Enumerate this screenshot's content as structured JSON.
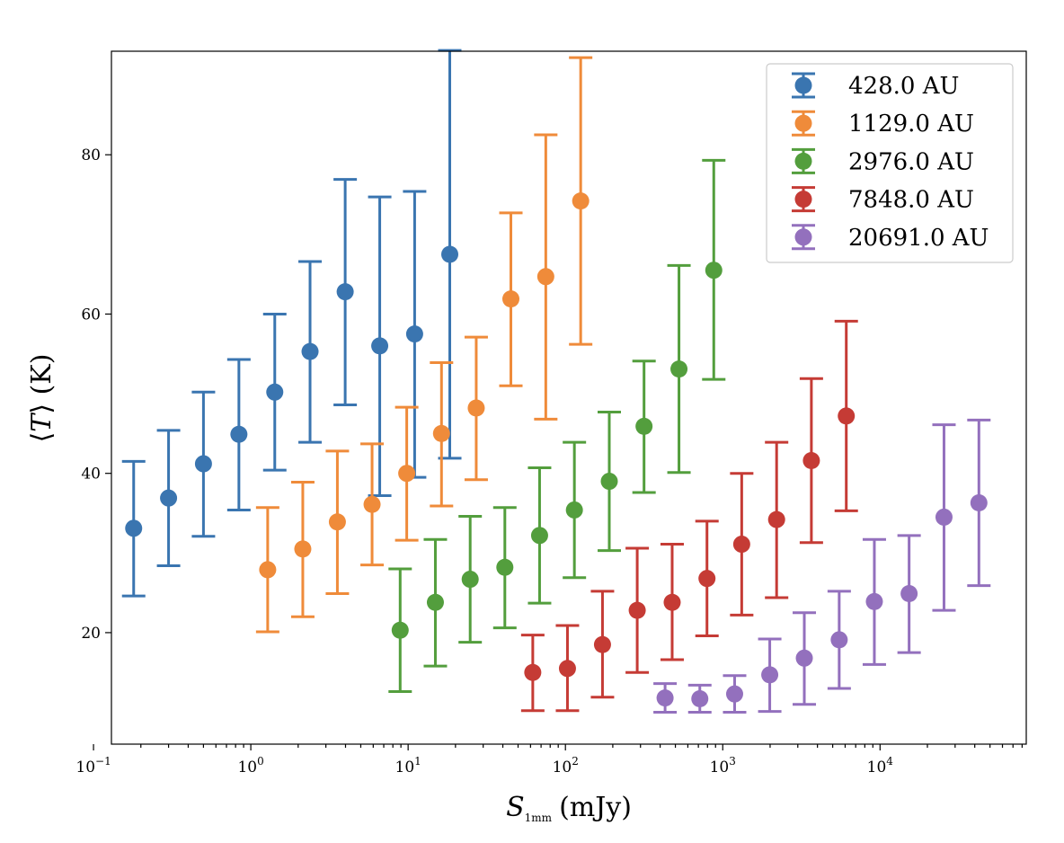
{
  "chart_data": {
    "type": "scatter",
    "title": "",
    "xlabel": {
      "symbol": "S",
      "subscript": "1mm",
      "unit": "(mJy)"
    },
    "ylabel": {
      "symbol": "T",
      "unit": "(K)"
    },
    "xscale": "log",
    "xlim": [
      0.13,
      85000
    ],
    "ylim": [
      6,
      93
    ],
    "xticks": [
      {
        "value": 0.1,
        "base": "10",
        "exp": "−1"
      },
      {
        "value": 1,
        "base": "10",
        "exp": "0"
      },
      {
        "value": 10,
        "base": "10",
        "exp": "1"
      },
      {
        "value": 100,
        "base": "10",
        "exp": "2"
      },
      {
        "value": 1000,
        "base": "10",
        "exp": "3"
      },
      {
        "value": 10000,
        "base": "10",
        "exp": "4"
      }
    ],
    "yticks": [
      {
        "value": 20,
        "label": "20"
      },
      {
        "value": 40,
        "label": "40"
      },
      {
        "value": 60,
        "label": "60"
      },
      {
        "value": 80,
        "label": "80"
      }
    ],
    "legend_position": "top-right",
    "series": [
      {
        "name": "428.0 AU",
        "color": "#3a75b0",
        "points": [
          {
            "x": 0.18,
            "y": 33.1,
            "lo": 24.6,
            "hi": 41.5
          },
          {
            "x": 0.3,
            "y": 36.9,
            "lo": 28.4,
            "hi": 45.4
          },
          {
            "x": 0.5,
            "y": 41.2,
            "lo": 32.1,
            "hi": 50.2
          },
          {
            "x": 0.84,
            "y": 44.9,
            "lo": 35.4,
            "hi": 54.3
          },
          {
            "x": 1.42,
            "y": 50.2,
            "lo": 40.4,
            "hi": 60.0
          },
          {
            "x": 2.38,
            "y": 55.3,
            "lo": 43.9,
            "hi": 66.6
          },
          {
            "x": 3.98,
            "y": 62.8,
            "lo": 48.6,
            "hi": 76.9
          },
          {
            "x": 6.6,
            "y": 56.0,
            "lo": 37.2,
            "hi": 74.7
          },
          {
            "x": 11.0,
            "y": 57.5,
            "lo": 39.5,
            "hi": 75.4
          },
          {
            "x": 18.4,
            "y": 67.5,
            "lo": 41.9,
            "hi": 93.1
          }
        ]
      },
      {
        "name": "1129.0 AU",
        "color": "#ef8b3a",
        "points": [
          {
            "x": 1.28,
            "y": 27.9,
            "lo": 20.1,
            "hi": 35.7
          },
          {
            "x": 2.14,
            "y": 30.5,
            "lo": 22.0,
            "hi": 38.9
          },
          {
            "x": 3.55,
            "y": 33.9,
            "lo": 24.9,
            "hi": 42.8
          },
          {
            "x": 5.9,
            "y": 36.1,
            "lo": 28.5,
            "hi": 43.7
          },
          {
            "x": 9.8,
            "y": 40.0,
            "lo": 31.6,
            "hi": 48.3
          },
          {
            "x": 16.3,
            "y": 45.0,
            "lo": 35.9,
            "hi": 53.9
          },
          {
            "x": 27.1,
            "y": 48.2,
            "lo": 39.2,
            "hi": 57.1
          },
          {
            "x": 45.0,
            "y": 61.9,
            "lo": 51.0,
            "hi": 72.7
          },
          {
            "x": 75.0,
            "y": 64.7,
            "lo": 46.8,
            "hi": 82.5
          },
          {
            "x": 125.0,
            "y": 74.2,
            "lo": 56.2,
            "hi": 92.2
          }
        ]
      },
      {
        "name": "2976.0 AU",
        "color": "#539e3d",
        "points": [
          {
            "x": 8.9,
            "y": 20.3,
            "lo": 12.6,
            "hi": 28.0
          },
          {
            "x": 14.9,
            "y": 23.8,
            "lo": 15.8,
            "hi": 31.7
          },
          {
            "x": 24.8,
            "y": 26.7,
            "lo": 18.8,
            "hi": 34.6
          },
          {
            "x": 41.2,
            "y": 28.2,
            "lo": 20.6,
            "hi": 35.7
          },
          {
            "x": 68.5,
            "y": 32.2,
            "lo": 23.7,
            "hi": 40.7
          },
          {
            "x": 114.0,
            "y": 35.4,
            "lo": 26.9,
            "hi": 43.9
          },
          {
            "x": 190.0,
            "y": 39.0,
            "lo": 30.3,
            "hi": 47.7
          },
          {
            "x": 316.0,
            "y": 45.9,
            "lo": 37.6,
            "hi": 54.1
          },
          {
            "x": 527.0,
            "y": 53.1,
            "lo": 40.1,
            "hi": 66.1
          },
          {
            "x": 877.0,
            "y": 65.5,
            "lo": 51.8,
            "hi": 79.3
          }
        ]
      },
      {
        "name": "7848.0 AU",
        "color": "#c53b35",
        "points": [
          {
            "x": 62.0,
            "y": 15.0,
            "lo": 10.2,
            "hi": 19.7
          },
          {
            "x": 103.0,
            "y": 15.5,
            "lo": 10.2,
            "hi": 20.9
          },
          {
            "x": 172.0,
            "y": 18.5,
            "lo": 11.9,
            "hi": 25.2
          },
          {
            "x": 286.0,
            "y": 22.8,
            "lo": 15.0,
            "hi": 30.6
          },
          {
            "x": 477.0,
            "y": 23.8,
            "lo": 16.6,
            "hi": 31.1
          },
          {
            "x": 794.0,
            "y": 26.8,
            "lo": 19.6,
            "hi": 34.0
          },
          {
            "x": 1320.0,
            "y": 31.1,
            "lo": 22.2,
            "hi": 40.0
          },
          {
            "x": 2200.0,
            "y": 34.2,
            "lo": 24.4,
            "hi": 43.9
          },
          {
            "x": 3660.0,
            "y": 41.6,
            "lo": 31.3,
            "hi": 51.9
          },
          {
            "x": 6100.0,
            "y": 47.2,
            "lo": 35.3,
            "hi": 59.1
          }
        ]
      },
      {
        "name": "20691.0 AU",
        "color": "#9370bd",
        "points": [
          {
            "x": 430.0,
            "y": 11.8,
            "lo": 10.0,
            "hi": 13.6
          },
          {
            "x": 715.0,
            "y": 11.7,
            "lo": 10.0,
            "hi": 13.4
          },
          {
            "x": 1190.0,
            "y": 12.3,
            "lo": 10.0,
            "hi": 14.6
          },
          {
            "x": 1990.0,
            "y": 14.7,
            "lo": 10.1,
            "hi": 19.2
          },
          {
            "x": 3300.0,
            "y": 16.8,
            "lo": 11.0,
            "hi": 22.5
          },
          {
            "x": 5500.0,
            "y": 19.1,
            "lo": 13.0,
            "hi": 25.2
          },
          {
            "x": 9200.0,
            "y": 23.9,
            "lo": 16.0,
            "hi": 31.7
          },
          {
            "x": 15300.0,
            "y": 24.9,
            "lo": 17.5,
            "hi": 32.2
          },
          {
            "x": 25500.0,
            "y": 34.5,
            "lo": 22.8,
            "hi": 46.1
          },
          {
            "x": 42500.0,
            "y": 36.3,
            "lo": 25.9,
            "hi": 46.7
          }
        ]
      }
    ]
  }
}
